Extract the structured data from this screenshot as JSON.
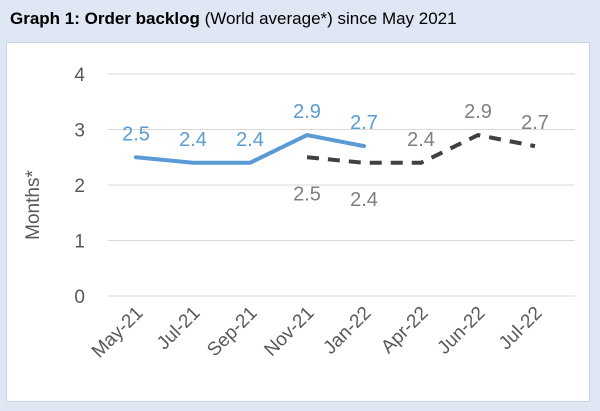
{
  "header": {
    "title": "Graph 1: Order backlog",
    "subtitle": "(World average*) since May 2021"
  },
  "chart_data": {
    "type": "line",
    "title": "Graph 1: Order backlog",
    "subtitle": "(World average*) since May 2021",
    "xlabel": "",
    "ylabel": "Months*",
    "ylim": [
      0,
      4
    ],
    "yticks": [
      0,
      1,
      2,
      3,
      4
    ],
    "grid": true,
    "categories": [
      "May-21",
      "Jul-21",
      "Sep-21",
      "Nov-21",
      "Jan-22",
      "Apr-22",
      "Jun-22",
      "Jul-22"
    ],
    "series": [
      {
        "name": "",
        "style": "solid",
        "color": "#5b9bd5",
        "values": [
          2.5,
          2.4,
          2.4,
          2.9,
          2.7,
          null,
          null,
          null
        ]
      },
      {
        "name": "",
        "style": "dashed",
        "color": "#404040",
        "values": [
          null,
          null,
          null,
          2.5,
          2.4,
          2.4,
          2.9,
          2.7
        ]
      }
    ]
  },
  "colors": {
    "frame_bg": "#dfe6f4",
    "plot_bg": "#ffffff",
    "grid": "#d9d9d9",
    "solid_series": "#5b9bd5",
    "dashed_series": "#404040",
    "dashed_label": "#7f7f7f"
  }
}
